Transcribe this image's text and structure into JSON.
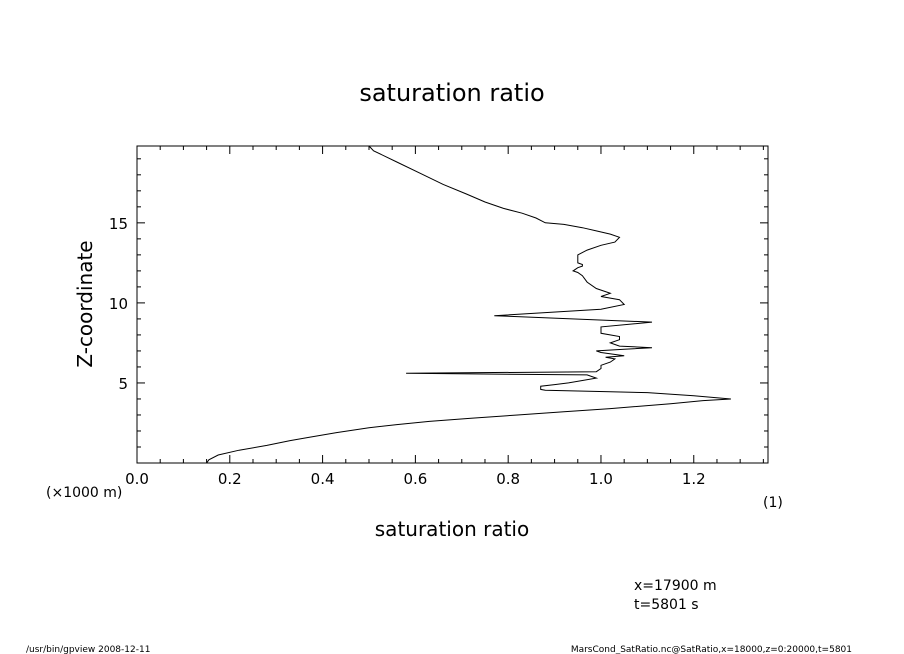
{
  "chart_data": {
    "type": "line",
    "title": "saturation ratio",
    "xlabel": "saturation ratio",
    "ylabel": "Z-coordinate",
    "x_unit_label": "(1)",
    "y_unit_label": "(×1000 m)",
    "xlim": [
      0,
      1.36
    ],
    "ylim": [
      0,
      19.8
    ],
    "x_ticks": [
      {
        "value": 0.0,
        "label": "0.0"
      },
      {
        "value": 0.2,
        "label": "0.2"
      },
      {
        "value": 0.4,
        "label": "0.4"
      },
      {
        "value": 0.6,
        "label": "0.6"
      },
      {
        "value": 0.8,
        "label": "0.8"
      },
      {
        "value": 1.0,
        "label": "1.0"
      },
      {
        "value": 1.2,
        "label": "1.2"
      }
    ],
    "y_ticks": [
      {
        "value": 5,
        "label": "5"
      },
      {
        "value": 10,
        "label": "10"
      },
      {
        "value": 15,
        "label": "15"
      }
    ],
    "grid": false,
    "series": [
      {
        "points": [
          [
            0.15,
            0.0
          ],
          [
            0.155,
            0.2
          ],
          [
            0.175,
            0.5
          ],
          [
            0.22,
            0.8
          ],
          [
            0.28,
            1.1
          ],
          [
            0.33,
            1.4
          ],
          [
            0.37,
            1.6
          ],
          [
            0.43,
            1.9
          ],
          [
            0.5,
            2.2
          ],
          [
            0.56,
            2.4
          ],
          [
            0.63,
            2.6
          ],
          [
            0.72,
            2.8
          ],
          [
            0.82,
            3.0
          ],
          [
            0.92,
            3.2
          ],
          [
            1.02,
            3.4
          ],
          [
            1.15,
            3.7
          ],
          [
            1.22,
            3.9
          ],
          [
            1.28,
            4.0
          ],
          [
            1.2,
            4.2
          ],
          [
            1.1,
            4.4
          ],
          [
            1.02,
            4.45
          ],
          [
            0.95,
            4.5
          ],
          [
            0.88,
            4.55
          ],
          [
            0.87,
            4.6
          ],
          [
            0.87,
            4.8
          ],
          [
            0.9,
            4.9
          ],
          [
            0.93,
            5.0
          ],
          [
            0.96,
            5.15
          ],
          [
            0.99,
            5.3
          ],
          [
            0.97,
            5.5
          ],
          [
            0.58,
            5.6
          ],
          [
            0.99,
            5.7
          ],
          [
            1.0,
            5.9
          ],
          [
            1.0,
            6.1
          ],
          [
            1.02,
            6.3
          ],
          [
            1.03,
            6.5
          ],
          [
            1.01,
            6.6
          ],
          [
            1.05,
            6.7
          ],
          [
            1.0,
            6.9
          ],
          [
            0.99,
            7.0
          ],
          [
            1.05,
            7.1
          ],
          [
            1.11,
            7.2
          ],
          [
            1.04,
            7.3
          ],
          [
            1.02,
            7.5
          ],
          [
            1.04,
            7.7
          ],
          [
            1.04,
            7.9
          ],
          [
            1.0,
            8.1
          ],
          [
            1.0,
            8.5
          ],
          [
            1.11,
            8.8
          ],
          [
            0.77,
            9.2
          ],
          [
            1.0,
            9.6
          ],
          [
            1.05,
            9.9
          ],
          [
            1.04,
            10.2
          ],
          [
            1.0,
            10.4
          ],
          [
            1.02,
            10.6
          ],
          [
            0.99,
            10.9
          ],
          [
            0.97,
            11.3
          ],
          [
            0.96,
            11.7
          ],
          [
            0.95,
            11.9
          ],
          [
            0.94,
            12.0
          ],
          [
            0.95,
            12.2
          ],
          [
            0.96,
            12.3
          ],
          [
            0.96,
            12.4
          ],
          [
            0.95,
            12.5
          ],
          [
            0.95,
            13.0
          ],
          [
            0.97,
            13.3
          ],
          [
            1.0,
            13.6
          ],
          [
            1.03,
            13.8
          ],
          [
            1.04,
            14.1
          ],
          [
            1.02,
            14.3
          ],
          [
            0.99,
            14.5
          ],
          [
            0.96,
            14.7
          ],
          [
            0.92,
            14.9
          ],
          [
            0.88,
            15.0
          ],
          [
            0.86,
            15.3
          ],
          [
            0.83,
            15.6
          ],
          [
            0.79,
            15.9
          ],
          [
            0.75,
            16.3
          ],
          [
            0.71,
            16.8
          ],
          [
            0.66,
            17.4
          ],
          [
            0.61,
            18.1
          ],
          [
            0.56,
            18.8
          ],
          [
            0.51,
            19.5
          ],
          [
            0.5,
            19.8
          ]
        ]
      }
    ]
  },
  "annotations": {
    "x_position": "x=17900 m",
    "time": "t=5801 s"
  },
  "footer": {
    "left": "/usr/bin/gpview   2008-12-11",
    "right": "MarsCond_SatRatio.nc@SatRatio,x=18000,z=0:20000,t=5801"
  }
}
